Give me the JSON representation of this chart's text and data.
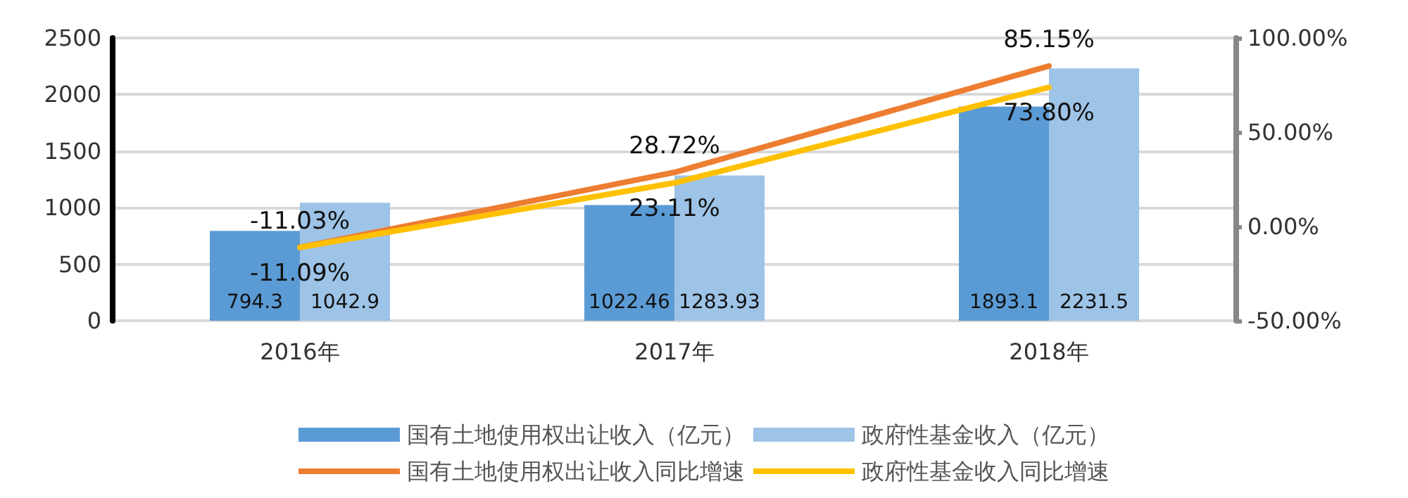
{
  "chart_data": {
    "type": "bar",
    "categories": [
      "2016年",
      "2017年",
      "2018年"
    ],
    "series": [
      {
        "name": "国有土地使用权出让收入（亿元）",
        "color": "#5b9bd5",
        "values": [
          794.3,
          1022.46,
          1893.1
        ],
        "value_labels": [
          "794.3",
          "1022.46",
          "1893.1"
        ]
      },
      {
        "name": "政府性基金收入（亿元）",
        "color": "#9dc3e6",
        "values": [
          1042.9,
          1283.93,
          2231.5
        ],
        "value_labels": [
          "1042.9",
          "1283.93",
          "2231.5"
        ]
      },
      {
        "name": "国有土地使用权出让收入同比增速",
        "type": "line",
        "axis": "y2",
        "color": "#ed7d31",
        "values": [
          -11.03,
          28.72,
          85.15
        ],
        "value_labels": [
          "-11.03%",
          "28.72%",
          "85.15%"
        ]
      },
      {
        "name": "政府性基金收入同比增速",
        "type": "line",
        "axis": "y2",
        "color": "#ffc000",
        "values": [
          -11.09,
          23.11,
          73.8
        ],
        "value_labels": [
          "-11.09%",
          "23.11%",
          "73.80%"
        ]
      }
    ],
    "ylim": [
      0,
      2500
    ],
    "yticks": [
      0,
      500,
      1000,
      1500,
      2000,
      2500
    ],
    "y2lim": [
      -50,
      100
    ],
    "y2ticks": [
      {
        "value": -50,
        "label": "-50.00%"
      },
      {
        "value": 0,
        "label": "0.00%"
      },
      {
        "value": 50,
        "label": "50.00%"
      },
      {
        "value": 100,
        "label": "100.00%"
      }
    ],
    "grid": "y",
    "legend": "bottom",
    "marker": "none",
    "line_style": "solid"
  }
}
